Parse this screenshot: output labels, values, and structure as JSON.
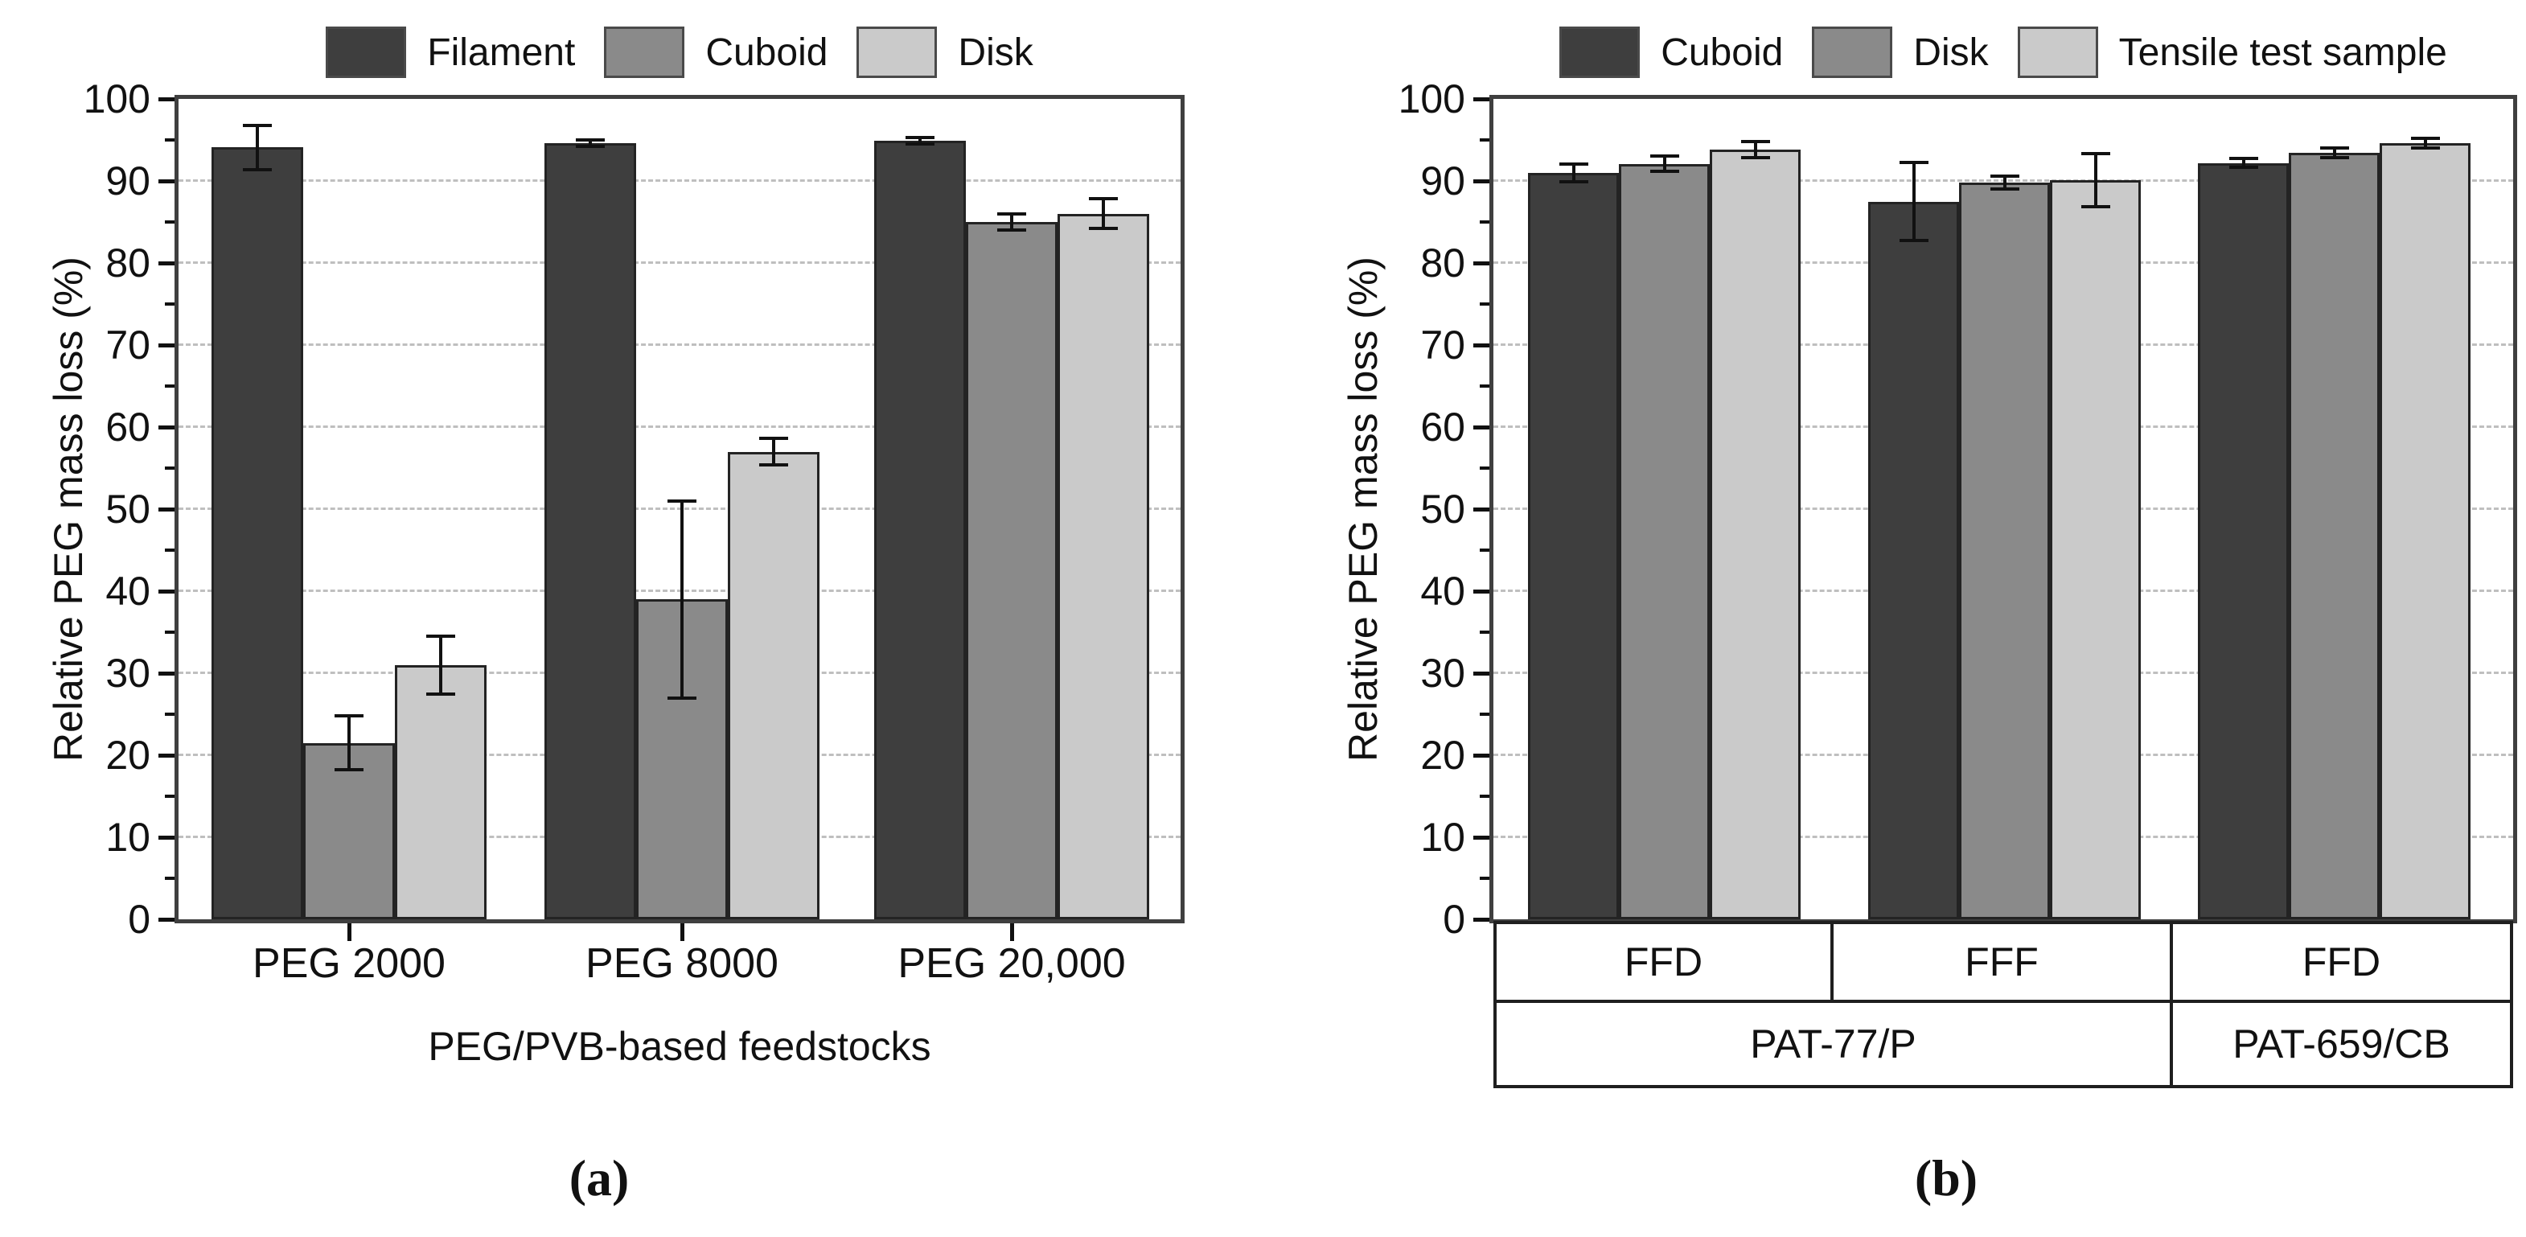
{
  "figure": {
    "background": "#ffffff",
    "panels": [
      {
        "caption": "(a)",
        "y_title": "Relative PEG mass loss (%)",
        "x_title": "PEG/PVB-based feedstocks"
      },
      {
        "caption": "(b)",
        "y_title": "Relative PEG mass loss (%)",
        "x_title": ""
      }
    ]
  },
  "colors": {
    "dark_series": "#3e3e3e",
    "medium_series": "#8a8a8a",
    "light_series": "#cacaca",
    "frame": "#3f3f3f",
    "gridline": "#bfbfbf",
    "text": "#111111",
    "error_bar": "#111111"
  },
  "chart_data": [
    {
      "type": "bar",
      "title": "",
      "categories": [
        "PEG 2000",
        "PEG 8000",
        "PEG 20,000"
      ],
      "series": [
        {
          "name": "Filament",
          "color": "#3e3e3e",
          "values": [
            94.1,
            94.6,
            94.9
          ],
          "errors": [
            2.7,
            0.4,
            0.4
          ]
        },
        {
          "name": "Cuboid",
          "color": "#8a8a8a",
          "values": [
            21.5,
            39.0,
            85.0
          ],
          "errors": [
            3.3,
            12.0,
            1.0
          ]
        },
        {
          "name": "Disk",
          "color": "#cacaca",
          "values": [
            31.0,
            57.0,
            86.0
          ],
          "errors": [
            3.5,
            1.6,
            1.8
          ]
        }
      ],
      "xlabel": "PEG/PVB-based feedstocks",
      "ylabel": "Relative PEG mass loss (%)",
      "ylim": [
        0,
        100
      ],
      "ytick_step": 10,
      "yminor_step": 5,
      "grid": "horizontal dashed at major ticks",
      "legend_position": "top",
      "error_bars": true
    },
    {
      "type": "bar",
      "title": "",
      "categories": [
        "FFD",
        "FFF",
        "FFD"
      ],
      "category_groups": [
        {
          "label": "PAT-77/P",
          "span": [
            0,
            1
          ]
        },
        {
          "label": "PAT-659/CB",
          "span": [
            2,
            2
          ]
        }
      ],
      "series": [
        {
          "name": "Cuboid",
          "color": "#3e3e3e",
          "values": [
            91.0,
            87.5,
            92.2
          ],
          "errors": [
            1.1,
            4.8,
            0.5
          ]
        },
        {
          "name": "Disk",
          "color": "#8a8a8a",
          "values": [
            92.1,
            89.8,
            93.4
          ],
          "errors": [
            0.9,
            0.8,
            0.6
          ]
        },
        {
          "name": "Tensile test sample",
          "color": "#cacaca",
          "values": [
            93.8,
            90.1,
            94.6
          ],
          "errors": [
            1.0,
            3.2,
            0.6
          ]
        }
      ],
      "xlabel": "",
      "ylabel": "Relative PEG mass loss (%)",
      "ylim": [
        0,
        100
      ],
      "ytick_step": 10,
      "yminor_step": 5,
      "grid": "horizontal dashed at major ticks",
      "legend_position": "top",
      "error_bars": true
    }
  ]
}
